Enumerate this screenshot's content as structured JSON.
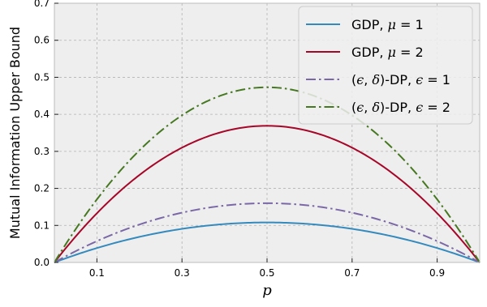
{
  "chart_data": {
    "type": "line",
    "xlabel": "p",
    "ylabel": "Mutual Information Upper Bound",
    "xlim": [
      0,
      1
    ],
    "ylim": [
      0,
      0.7
    ],
    "xticks": [
      0.1,
      0.3,
      0.5,
      0.7,
      0.9
    ],
    "xtick_labels": [
      "0.1",
      "0.3",
      "0.5",
      "0.7",
      "0.9"
    ],
    "yticks": [
      0.0,
      0.1,
      0.2,
      0.3,
      0.4,
      0.5,
      0.6,
      0.7
    ],
    "ytick_labels": [
      "0.0",
      "0.1",
      "0.2",
      "0.3",
      "0.4",
      "0.5",
      "0.6",
      "0.7"
    ],
    "grid": true,
    "legend_position": "top-right",
    "series": [
      {
        "name": "GDP, μ = 1",
        "label_parts": [
          "GDP, ",
          "μ",
          " = 1"
        ],
        "color": "#348ABD",
        "style": "solid",
        "peak": 0.108
      },
      {
        "name": "GDP, μ = 2",
        "label_parts": [
          "GDP, ",
          "μ",
          " = 2"
        ],
        "color": "#A60628",
        "style": "solid",
        "peak": 0.369
      },
      {
        "name": "(ϵ, δ)-DP, ϵ = 1",
        "label_parts": [
          "(",
          "ϵ",
          ", ",
          "δ",
          ")-DP, ",
          "ϵ",
          " = 1"
        ],
        "color": "#7A68A6",
        "style": "dashdot",
        "peak": 0.16
      },
      {
        "name": "(ϵ, δ)-DP, ϵ = 2",
        "label_parts": [
          "(",
          "ϵ",
          ", ",
          "δ",
          ")-DP, ",
          "ϵ",
          " = 2"
        ],
        "color": "#467821",
        "style": "dashdot",
        "peak": 0.473
      }
    ]
  }
}
